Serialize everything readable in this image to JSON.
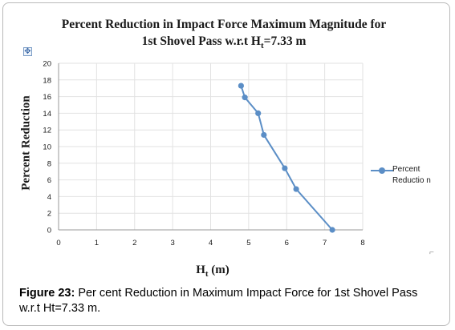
{
  "title_line1": "Percent Reduction in Impact Force Maximum Magnitude for",
  "title_line2": "1st Shovel Pass w.r.t H",
  "title_line2_sub": "t",
  "title_line2_end": "=7.33 m",
  "move_handle_icon": "move-cross-icon",
  "corner_icon": "resize-corner-icon",
  "caption": {
    "label": "Figure 23:",
    "text": " Per cent Reduction in Maximum Impact Force for 1st Shovel Pass w.r.t Ht=7.33 m."
  },
  "chart_data": {
    "type": "line",
    "title": "Percent Reduction in Impact Force Maximum Magnitude for 1st Shovel Pass w.r.t Ht=7.33 m",
    "xlabel": "H",
    "xlabel_sub": "t",
    "xlabel_end": " (m)",
    "ylabel": "Percent Reduction",
    "xlim": [
      0,
      8
    ],
    "ylim": [
      0,
      20
    ],
    "xticks": [
      0,
      1,
      2,
      3,
      4,
      5,
      6,
      7,
      8
    ],
    "yticks": [
      0,
      2,
      4,
      6,
      8,
      10,
      12,
      14,
      16,
      18,
      20
    ],
    "grid": true,
    "legend_position": "right",
    "series": [
      {
        "name_line1": "Percent",
        "name_line2": "Reductio n",
        "color": "#5b8ec6",
        "x": [
          4.8,
          4.9,
          5.25,
          5.4,
          5.95,
          6.25,
          7.2
        ],
        "y": [
          17.3,
          15.9,
          14.0,
          11.4,
          7.4,
          4.9,
          0.0
        ]
      }
    ]
  }
}
